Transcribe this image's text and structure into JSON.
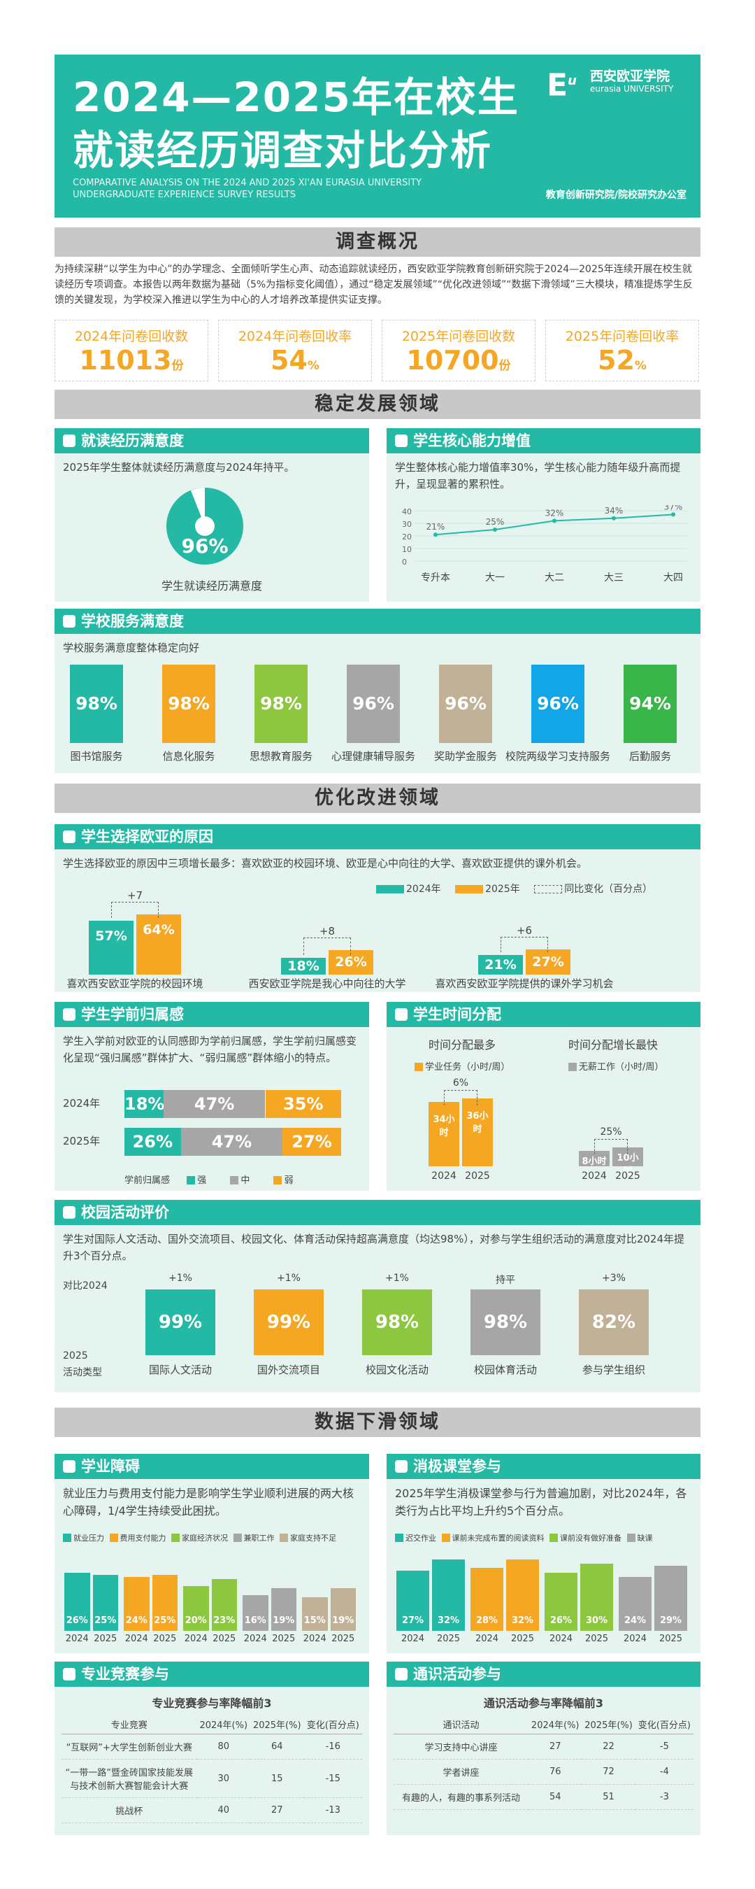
{
  "header": {
    "title1": "2024—2025年在校生",
    "title2": "就读经历调查对比分析",
    "subtitle_en": "COMPARATIVE ANALYSIS ON THE 2024 AND 2025 XI'AN EURASIA UNIVERSITY UNDERGRADUATE EXPERIENCE SURVEY RESULTS",
    "logo_cn": "西安欧亚学院",
    "logo_en": "eurasia UNIVERSITY",
    "logo_mark": "E",
    "logo_mark2": "u",
    "dept": "教育创新研究院/院校研究办公室"
  },
  "overview": {
    "band": "调查概况",
    "intro": "为持续深耕“以学生为中心”的办学理念、全面倾听学生心声、动态追踪就读经历，西安欧亚学院教育创新研究院于2024—2025年连续开展在校生就读经历专项调查。本报告以两年数据为基础（5%为指标变化阈值），通过“稳定发展领域”“优化改进领域”“数据下滑领域”三大模块，精准提炼学生反馈的关键发现，为学校深入推进以学生为中心的人才培养改革提供实证支撑。",
    "kpis": [
      {
        "label": "2024年问卷回收数",
        "value": "11013",
        "unit": "份"
      },
      {
        "label": "2024年问卷回收率",
        "value": "54",
        "unit": "%"
      },
      {
        "label": "2025年问卷回收数",
        "value": "10700",
        "unit": "份"
      },
      {
        "label": "2025年问卷回收率",
        "value": "52",
        "unit": "%"
      }
    ]
  },
  "stable": {
    "band": "稳定发展领域",
    "satisfaction": {
      "title": "就读经历满意度",
      "text": "2025年学生整体就读经历满意度与2024年持平。",
      "value": "96%",
      "caption": "学生就读经历满意度",
      "percent": 96
    },
    "ability": {
      "title": "学生核心能力增值",
      "text": "学生整体核心能力增值率30%，学生核心能力随年级升高而提升，呈现显著的累积性。",
      "yticks": [
        "40",
        "30",
        "20",
        "10",
        "0"
      ],
      "chart_data": {
        "type": "line",
        "categories": [
          "专升本",
          "大一",
          "大二",
          "大三",
          "大四"
        ],
        "values": [
          21,
          25,
          32,
          34,
          37
        ],
        "labels": [
          "21%",
          "25%",
          "32%",
          "34%",
          "37%"
        ],
        "ylim": [
          0,
          40
        ]
      }
    },
    "service": {
      "title": "学校服务满意度",
      "text": "学校服务满意度整体稳定向好",
      "items": [
        {
          "label": "图书馆服务",
          "value": "98%",
          "color": "#24b9a4"
        },
        {
          "label": "信息化服务",
          "value": "98%",
          "color": "#f5a623"
        },
        {
          "label": "思想教育服务",
          "value": "98%",
          "color": "#8dc63f"
        },
        {
          "label": "心理健康辅导服务",
          "value": "96%",
          "color": "#a6a6a6"
        },
        {
          "label": "奖助学金服务",
          "value": "96%",
          "color": "#c1b197"
        },
        {
          "label": "校院两级学习支持服务",
          "value": "96%",
          "color": "#12a5e8"
        },
        {
          "label": "后勤服务",
          "value": "94%",
          "color": "#3ab54a"
        }
      ]
    }
  },
  "improve": {
    "band": "优化改进领域",
    "reasons": {
      "title": "学生选择欧亚的原因",
      "text": "学生选择欧亚的原因中三项增长最多：喜欢欧亚的校园环境、欧亚是心中向往的大学、喜欢欧亚提供的课外机会。",
      "legend": [
        "2024年",
        "2025年",
        "同比变化（百分点）"
      ],
      "chart_data": {
        "type": "bar",
        "categories": [
          "喜欢西安欧亚学院的校园环境",
          "西安欧亚学院是我心中向往的大学",
          "喜欢西安欧亚学院提供的课外学习机会"
        ],
        "series": [
          {
            "name": "2024年",
            "values": [
              57,
              18,
              21
            ]
          },
          {
            "name": "2025年",
            "values": [
              64,
              26,
              27
            ]
          }
        ],
        "labels24": [
          "57%",
          "18%",
          "21%"
        ],
        "labels25": [
          "64%",
          "26%",
          "27%"
        ],
        "changes": [
          "+7",
          "+8",
          "+6"
        ]
      }
    },
    "belonging": {
      "title": "学生学前归属感",
      "text": "学生入学前对欧亚的认同感即为学前归属感，学生学前归属感变化呈现“强归属感”群体扩大、“弱归属感”群体缩小的特点。",
      "rows": [
        {
          "year": "2024年",
          "strong": "18%",
          "mid": "47%",
          "weak": "35%",
          "v": [
            18,
            47,
            35
          ]
        },
        {
          "year": "2025年",
          "strong": "26%",
          "mid": "47%",
          "weak": "27%",
          "v": [
            26,
            47,
            27
          ]
        }
      ],
      "legend_title": "学前归属感",
      "legend": [
        "强",
        "中",
        "弱"
      ]
    },
    "time": {
      "title": "学生时间分配",
      "most": "时间分配最多",
      "fastest": "时间分配增长最快",
      "leg1": "学业任务（小时/周）",
      "leg2": "无薪工作（小时/周）",
      "chart_data": [
        {
          "type": "bar",
          "categories": [
            "2024",
            "2025"
          ],
          "values": [
            34,
            36
          ],
          "labels": [
            "34小时",
            "36小时"
          ],
          "change": "6%"
        },
        {
          "type": "bar",
          "categories": [
            "2024",
            "2025"
          ],
          "values": [
            8,
            10
          ],
          "labels": [
            "8小时",
            "10小时"
          ],
          "change": "25%"
        }
      ]
    },
    "activity": {
      "title": "校园活动评价",
      "text": "学生对国际人文活动、国外交流项目、校园文化、体育活动保持超高满意度（均达98%），对参与学生组织活动的满意度对比2024年提升3个百分点。",
      "row1": "对比2024",
      "row2": "2025",
      "row3": "活动类型",
      "items": [
        {
          "label": "国际人文活动",
          "value": "99%",
          "change": "+1%",
          "color": "#24b9a4"
        },
        {
          "label": "国外交流项目",
          "value": "99%",
          "change": "+1%",
          "color": "#f5a623"
        },
        {
          "label": "校园文化活动",
          "value": "98%",
          "change": "+1%",
          "color": "#8dc63f"
        },
        {
          "label": "校园体育活动",
          "value": "98%",
          "change": "持平",
          "color": "#a6a6a6"
        },
        {
          "label": "参与学生组织",
          "value": "82%",
          "change": "+3%",
          "color": "#c1b197"
        }
      ]
    }
  },
  "decline": {
    "band": "数据下滑领域",
    "obstacles": {
      "title": "学业障碍",
      "text": "就业压力与费用支付能力是影响学生学业顺利进展的两大核心障碍，1/4学生持续受此困扰。",
      "legend": [
        "就业压力",
        "费用支付能力",
        "家庭经济状况",
        "兼职工作",
        "家庭支持不足"
      ],
      "chart_data": {
        "type": "bar",
        "categories": [
          "就业压力",
          "费用支付能力",
          "家庭经济状况",
          "兼职工作",
          "家庭支持不足"
        ],
        "series": [
          {
            "name": "2024",
            "values": [
              26,
              24,
              20,
              16,
              15
            ]
          },
          {
            "name": "2025",
            "values": [
              25,
              25,
              23,
              19,
              19
            ]
          }
        ],
        "labels": [
          [
            "26%",
            "25%"
          ],
          [
            "24%",
            "25%"
          ],
          [
            "20%",
            "23%"
          ],
          [
            "16%",
            "19%"
          ],
          [
            "15%",
            "19%"
          ]
        ],
        "years": [
          "2024",
          "2025"
        ]
      }
    },
    "passive": {
      "title": "消极课堂参与",
      "text": "2025年学生消极课堂参与行为普遍加剧，对比2024年，各类行为占比平均上升约5个百分点。",
      "legend": [
        "迟交作业",
        "课前未完成布置的阅读资料",
        "课前没有做好准备",
        "缺课"
      ],
      "chart_data": {
        "type": "bar",
        "categories": [
          "迟交作业",
          "课前未完成布置的阅读资料",
          "课前没有做好准备",
          "缺课"
        ],
        "series": [
          {
            "name": "2024",
            "values": [
              27,
              28,
              26,
              24
            ]
          },
          {
            "name": "2025",
            "values": [
              32,
              32,
              30,
              29
            ]
          }
        ],
        "labels": [
          [
            "27%",
            "32%"
          ],
          [
            "28%",
            "32%"
          ],
          [
            "26%",
            "30%"
          ],
          [
            "24%",
            "29%"
          ]
        ],
        "years": [
          "2024",
          "2025"
        ]
      }
    },
    "competition": {
      "title": "专业竞赛参与",
      "subtitle": "专业竞赛参与率降幅前3",
      "headers": [
        "专业竞赛",
        "2024年(%)",
        "2025年(%)",
        "变化(百分点)"
      ],
      "rows": [
        [
          "“互联网”+大学生创新创业大赛",
          "80",
          "64",
          "-16"
        ],
        [
          "“一带一路”暨金砖国家技能发展与技术创新大赛智能会计大赛",
          "30",
          "15",
          "-15"
        ],
        [
          "挑战杯",
          "40",
          "27",
          "-13"
        ]
      ]
    },
    "general": {
      "title": "通识活动参与",
      "subtitle": "通识活动参与率降幅前3",
      "headers": [
        "通识活动",
        "2024年(%)",
        "2025年(%)",
        "变化(百分点)"
      ],
      "rows": [
        [
          "学习支持中心讲座",
          "27",
          "22",
          "-5"
        ],
        [
          "学者讲座",
          "76",
          "72",
          "-4"
        ],
        [
          "有趣的人，有趣的事系列活动",
          "54",
          "51",
          "-3"
        ]
      ]
    }
  }
}
